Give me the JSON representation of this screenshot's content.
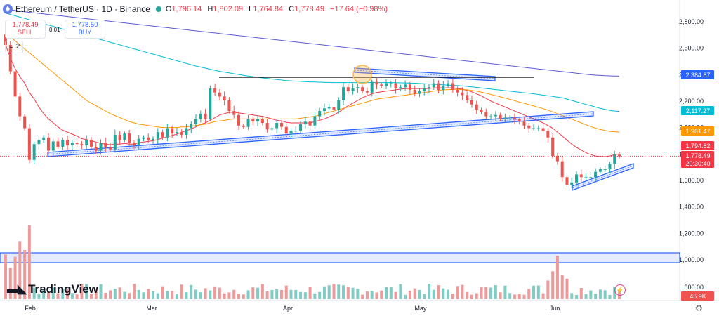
{
  "header": {
    "symbol": "Ethereum / TetherUS · 1D · Binance",
    "open_label": "O",
    "open": "1,796.14",
    "high_label": "H",
    "high": "1,802.09",
    "low_label": "L",
    "low": "1,764.84",
    "close_label": "C",
    "close": "1,778.49",
    "change": "−17.64 (−0.98%)"
  },
  "trade": {
    "sell_price": "1,778.49",
    "sell_label": "SELL",
    "buy_price": "1,778.50",
    "buy_label": "BUY",
    "spread": "0.01"
  },
  "indicator_toggle": "2",
  "logo_text": "TradingView",
  "colors": {
    "up": "#26a69a",
    "down": "#ef5350",
    "vol_up": "#80cbc4",
    "vol_down": "#ef9a9a",
    "ma_fast": "#f23645",
    "ma_mid": "#ff9800",
    "ma_slow": "#00bcd4",
    "ma_long": "#5b5bd6",
    "trendline": "#2962ff",
    "resistance": "#000000"
  },
  "chart_data": {
    "type": "candlestick",
    "y_ticks": [
      "2,800.00",
      "2,600.00",
      "2,400.00",
      "2,200.00",
      "2,000.00",
      "1,800.00",
      "1,600.00",
      "1,400.00",
      "1,200.00",
      "1,000.00"
    ],
    "ylim": [
      1000,
      2800
    ],
    "x_labels": [
      "Feb",
      "Mar",
      "Apr",
      "May",
      "Jun"
    ],
    "price_tags": [
      {
        "text": "2,384.87",
        "bg": "#2962ff",
        "fg": "#ffffff",
        "price": 2384.87
      },
      {
        "text": "2,117.27",
        "bg": "#00bcd4",
        "fg": "#ffffff",
        "price": 2117.27
      },
      {
        "text": "1,961.47",
        "bg": "#ff9800",
        "fg": "#ffffff",
        "price": 1961.47
      },
      {
        "text": "1,794.82",
        "bg": "#f23645",
        "fg": "#ffffff",
        "price": 1794.82
      },
      {
        "text": "1,778.49",
        "bg": "#f23645",
        "fg": "#ffffff",
        "price": 1778.49
      },
      {
        "text": "20:30:40",
        "bg": "#f23645",
        "fg": "#ffffff",
        "price": 1720
      }
    ],
    "volume_tick": "800.00",
    "volume_tag": "45.9K",
    "closes": [
      2620,
      2420,
      2230,
      2080,
      1990,
      1750,
      1870,
      1900,
      1920,
      1820,
      1890,
      1850,
      1900,
      1860,
      1880,
      1870,
      1860,
      1900,
      1850,
      1820,
      1880,
      1850,
      1830,
      1940,
      1900,
      1950,
      1880,
      1860,
      1910,
      1920,
      1900,
      1910,
      1960,
      1920,
      1990,
      1950,
      1960,
      1940,
      1990,
      2020,
      2060,
      2100,
      2060,
      2290,
      2260,
      2230,
      2200,
      2120,
      2090,
      2010,
      2000,
      2060,
      2040,
      2060,
      2030,
      1980,
      1990,
      2030,
      2000,
      1950,
      1970,
      1970,
      2020,
      2040,
      2010,
      2080,
      2120,
      2140,
      2150,
      2130,
      2200,
      2300,
      2270,
      2290,
      2300,
      2270,
      2260,
      2340,
      2320,
      2310,
      2330,
      2330,
      2290,
      2300,
      2320,
      2280,
      2250,
      2270,
      2290,
      2300,
      2330,
      2280,
      2310,
      2330,
      2280,
      2260,
      2240,
      2200,
      2170,
      2130,
      2110,
      2080,
      2080,
      2090,
      2060,
      2070,
      2070,
      2060,
      2040,
      2010,
      1990,
      1990,
      1990,
      1970,
      1920,
      1780,
      1740,
      1620,
      1560,
      1580,
      1640,
      1620,
      1620,
      1620,
      1660,
      1680,
      1680,
      1720,
      1790,
      1778
    ],
    "series": [
      {
        "name": "MA fast",
        "values": [
          2620,
          2520,
          2440,
          2380,
          2330,
          2260,
          2210,
          2150,
          2100,
          2060,
          2030,
          2000,
          1975,
          1960,
          1945,
          1930,
          1910,
          1905,
          1895,
          1885,
          1875,
          1870,
          1865,
          1870,
          1870,
          1875,
          1870,
          1870,
          1880,
          1885,
          1890,
          1895,
          1905,
          1915,
          1925,
          1935,
          1945,
          1960,
          1970,
          1985,
          2000,
          2020,
          2030,
          2050,
          2070,
          2090,
          2100,
          2110,
          2110,
          2105,
          2100,
          2095,
          2090,
          2085,
          2080,
          2070,
          2060,
          2050,
          2045,
          2035,
          2030,
          2030,
          2030,
          2030,
          2030,
          2040,
          2050,
          2060,
          2075,
          2090,
          2110,
          2135,
          2160,
          2180,
          2200,
          2220,
          2235,
          2250,
          2260,
          2265,
          2270,
          2275,
          2280,
          2285,
          2290,
          2290,
          2290,
          2290,
          2290,
          2290,
          2295,
          2295,
          2295,
          2295,
          2295,
          2290,
          2285,
          2275,
          2265,
          2250,
          2235,
          2215,
          2195,
          2180,
          2165,
          2150,
          2135,
          2120,
          2105,
          2090,
          2075,
          2060,
          2045,
          2030,
          2010,
          1990,
          1960,
          1930,
          1900,
          1870,
          1845,
          1825,
          1805,
          1790,
          1780,
          1775,
          1775,
          1780,
          1790,
          1795
        ]
      },
      {
        "name": "MA mid",
        "values": [
          2700,
          2680,
          2650,
          2620,
          2590,
          2560,
          2530,
          2500,
          2470,
          2440,
          2410,
          2380,
          2350,
          2320,
          2290,
          2260,
          2230,
          2200,
          2180,
          2160,
          2140,
          2120,
          2100,
          2085,
          2070,
          2055,
          2040,
          2030,
          2020,
          2015,
          2010,
          2005,
          2000,
          1995,
          1995,
          1995,
          1995,
          2000,
          2000,
          2005,
          2010,
          2015,
          2020,
          2030,
          2040,
          2045,
          2050,
          2055,
          2060,
          2060,
          2060,
          2060,
          2060,
          2060,
          2060,
          2060,
          2060,
          2060,
          2060,
          2060,
          2060,
          2060,
          2065,
          2070,
          2075,
          2080,
          2090,
          2100,
          2110,
          2120,
          2130,
          2140,
          2150,
          2160,
          2170,
          2180,
          2190,
          2200,
          2210,
          2215,
          2220,
          2225,
          2230,
          2235,
          2240,
          2245,
          2250,
          2255,
          2260,
          2265,
          2270,
          2275,
          2280,
          2282,
          2284,
          2284,
          2282,
          2280,
          2275,
          2270,
          2262,
          2254,
          2245,
          2236,
          2227,
          2218,
          2208,
          2198,
          2188,
          2178,
          2168,
          2158,
          2148,
          2138,
          2126,
          2114,
          2100,
          2086,
          2072,
          2058,
          2044,
          2030,
          2016,
          2002,
          1990,
          1980,
          1972,
          1966,
          1963,
          1961
        ]
      },
      {
        "name": "MA slow",
        "values": [
          2860,
          2850,
          2840,
          2830,
          2820,
          2810,
          2800,
          2790,
          2780,
          2770,
          2760,
          2750,
          2740,
          2730,
          2720,
          2710,
          2700,
          2690,
          2680,
          2670,
          2660,
          2650,
          2640,
          2630,
          2620,
          2610,
          2600,
          2590,
          2580,
          2570,
          2560,
          2550,
          2540,
          2530,
          2520,
          2510,
          2500,
          2490,
          2480,
          2470,
          2460,
          2452,
          2444,
          2436,
          2428,
          2420,
          2414,
          2408,
          2402,
          2396,
          2390,
          2385,
          2380,
          2375,
          2370,
          2366,
          2362,
          2358,
          2354,
          2350,
          2348,
          2346,
          2344,
          2342,
          2340,
          2339,
          2338,
          2337,
          2336,
          2335,
          2335,
          2335,
          2335,
          2335,
          2335,
          2335,
          2335,
          2335,
          2335,
          2335,
          2335,
          2335,
          2334,
          2333,
          2332,
          2331,
          2330,
          2328,
          2326,
          2324,
          2322,
          2320,
          2318,
          2316,
          2314,
          2312,
          2310,
          2306,
          2302,
          2298,
          2294,
          2290,
          2286,
          2282,
          2278,
          2274,
          2270,
          2266,
          2262,
          2258,
          2254,
          2250,
          2245,
          2240,
          2235,
          2230,
          2225,
          2220,
          2210,
          2200,
          2190,
          2180,
          2170,
          2160,
          2150,
          2140,
          2132,
          2125,
          2120,
          2117
        ]
      },
      {
        "name": "MA long",
        "values": [
          2890,
          2885,
          2880,
          2875,
          2870,
          2866,
          2862,
          2858,
          2854,
          2850,
          2846,
          2842,
          2838,
          2834,
          2830,
          2826,
          2822,
          2818,
          2814,
          2810,
          2806,
          2802,
          2798,
          2794,
          2790,
          2786,
          2782,
          2778,
          2774,
          2770,
          2766,
          2762,
          2758,
          2754,
          2750,
          2746,
          2742,
          2738,
          2734,
          2730,
          2726,
          2722,
          2718,
          2714,
          2710,
          2706,
          2702,
          2698,
          2694,
          2690,
          2686,
          2682,
          2678,
          2674,
          2670,
          2666,
          2662,
          2658,
          2654,
          2650,
          2646,
          2642,
          2638,
          2634,
          2630,
          2626,
          2622,
          2618,
          2614,
          2610,
          2606,
          2602,
          2598,
          2594,
          2590,
          2586,
          2582,
          2578,
          2574,
          2570,
          2566,
          2562,
          2558,
          2554,
          2550,
          2546,
          2542,
          2538,
          2534,
          2530,
          2526,
          2522,
          2518,
          2514,
          2510,
          2506,
          2502,
          2498,
          2494,
          2490,
          2486,
          2482,
          2478,
          2474,
          2470,
          2466,
          2462,
          2458,
          2454,
          2450,
          2446,
          2442,
          2438,
          2434,
          2430,
          2426,
          2422,
          2418,
          2414,
          2410,
          2406,
          2402,
          2398,
          2394,
          2391,
          2389,
          2387,
          2386,
          2385,
          2385
        ]
      }
    ]
  }
}
